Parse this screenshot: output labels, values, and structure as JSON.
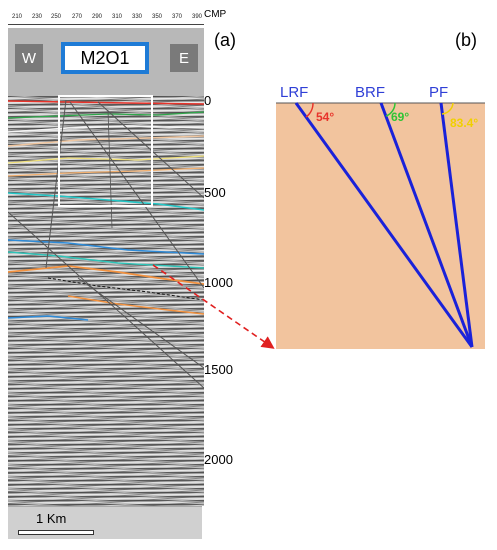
{
  "cmp_axis": {
    "label": "CMP",
    "ticks": [
      "210",
      "230",
      "250",
      "270",
      "290",
      "310",
      "330",
      "350",
      "370",
      "390"
    ]
  },
  "panels": {
    "a_label": "(a)",
    "b_label": "(b)"
  },
  "section": {
    "title": "M2O1",
    "west_label": "W",
    "east_label": "E",
    "depth_ticks": [
      "0",
      "500",
      "1000",
      "1500",
      "2000"
    ],
    "scale_label": "1 Km"
  },
  "faults": [
    {
      "name": "LRF",
      "angle": "54°",
      "color": "#e8332a"
    },
    {
      "name": "BRF",
      "angle": "69°",
      "color": "#2fc435"
    },
    {
      "name": "PF",
      "angle": "83.4°",
      "color": "#f0d000"
    }
  ],
  "colors": {
    "fault_line": "#1a22d9",
    "box_border": "#1e7bd6",
    "model_fill": "#f2c49e",
    "arrow": "#e02020"
  }
}
